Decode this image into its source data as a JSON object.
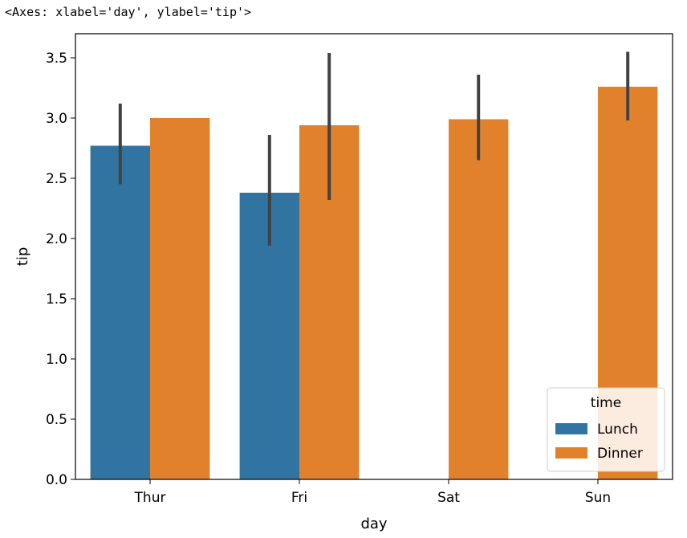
{
  "output_repr": "<Axes: xlabel='day', ylabel='tip'>",
  "chart_data": {
    "type": "bar",
    "xlabel": "day",
    "ylabel": "tip",
    "categories": [
      "Thur",
      "Fri",
      "Sat",
      "Sun"
    ],
    "ylim": [
      0,
      3.7
    ],
    "yticks": [
      0.0,
      0.5,
      1.0,
      1.5,
      2.0,
      2.5,
      3.0,
      3.5
    ],
    "ytick_labels": [
      "0.0",
      "0.5",
      "1.0",
      "1.5",
      "2.0",
      "2.5",
      "3.0",
      "3.5"
    ],
    "series": [
      {
        "name": "Lunch",
        "color": "#3274a1",
        "values": [
          2.77,
          2.38,
          null,
          null
        ],
        "ci_low": [
          2.45,
          1.94,
          null,
          null
        ],
        "ci_high": [
          3.12,
          2.86,
          null,
          null
        ]
      },
      {
        "name": "Dinner",
        "color": "#e1812c",
        "values": [
          3.0,
          2.94,
          2.99,
          3.26
        ],
        "ci_low": [
          3.0,
          2.32,
          2.65,
          2.98
        ],
        "ci_high": [
          3.0,
          3.54,
          3.36,
          3.55
        ]
      }
    ],
    "errorbar_color": "#424242",
    "legend": {
      "title": "time",
      "position": "lower right"
    },
    "grid": false
  }
}
